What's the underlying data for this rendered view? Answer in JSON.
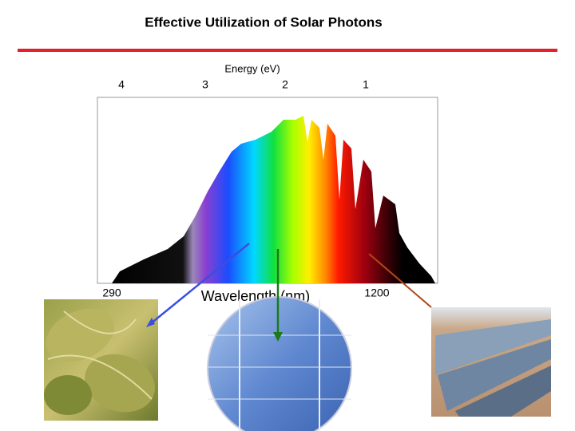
{
  "title": "Effective Utilization of Solar Photons",
  "energy_axis": {
    "label": "Energy (eV)",
    "ticks": [
      4,
      3,
      2,
      1
    ]
  },
  "wavelength_axis": {
    "label": "Wavelength (nm)",
    "ticks": [
      290,
      1200
    ]
  }
}
